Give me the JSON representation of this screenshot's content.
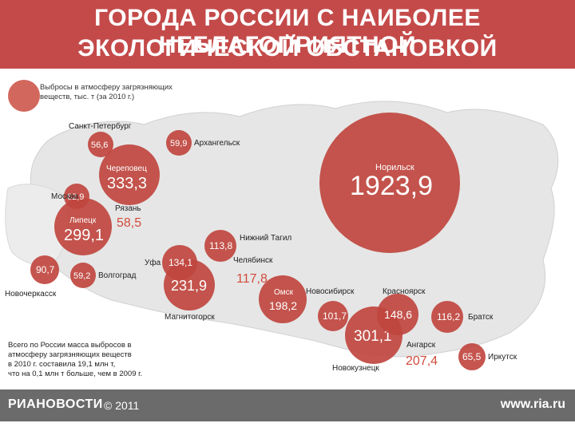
{
  "header": {
    "title_line1": "ГОРОДА РОССИИ С НАИБОЛЕЕ НЕБЛАГОПРИЯТНОЙ",
    "title_line2": "ЭКОЛОГИЧЕСКОЙ ОБСТАНОВКОЙ"
  },
  "legend": {
    "line1": "Выбросы в атмосферу загрязняющих",
    "line2": "веществ, тыс. т (за 2010 г.)"
  },
  "note": {
    "line1": "Всего по России масса выбросов в",
    "line2": "атмосферу загрязняющих веществ",
    "line3": "в 2010 г. составила 19,1 млн т,",
    "line4": "что на 0,1 млн т больше, чем в 2009 г."
  },
  "footer": {
    "brand": "РИАНОВОСТИ",
    "copyright": "© 2011",
    "site": "www.ria.ru"
  },
  "colors": {
    "header_bg": "#c44a4a",
    "circle": "#c0463f",
    "circle_light": "#d2685d",
    "map_land": "#e6e6e6",
    "red_text": "#d24b3c",
    "footer_bg": "#6b6b6b"
  },
  "cities": [
    {
      "id": "norilsk",
      "name": "Норильск",
      "value": "1923,9",
      "style": "inside"
    },
    {
      "id": "cherepovets",
      "name": "Череповец",
      "value": "333,3",
      "style": "inside"
    },
    {
      "id": "lipetsk",
      "name": "Липецк",
      "value": "299,1",
      "style": "inside"
    },
    {
      "id": "magnitogorsk",
      "name": "Магнитогорск",
      "value": "231,9",
      "style": "outside"
    },
    {
      "id": "novokuznetsk",
      "name": "Новокузнецк",
      "value": "301,1",
      "style": "outside"
    },
    {
      "id": "omsk",
      "name": "Омск",
      "value": "198,2",
      "style": "inside"
    },
    {
      "id": "krasnoyarsk",
      "name": "Красноярск",
      "value": "148,6",
      "style": "outside"
    },
    {
      "id": "ufa",
      "name": "Уфа",
      "value": "134,1",
      "style": "outside"
    },
    {
      "id": "bratsk",
      "name": "Братск",
      "value": "116,2",
      "style": "outside"
    },
    {
      "id": "nizhny-tagil",
      "name": "Нижний Тагил",
      "value": "113,8",
      "style": "outside"
    },
    {
      "id": "novosibirsk",
      "name": "Новосибирск",
      "value": "101,7",
      "style": "outside"
    },
    {
      "id": "novocherkassk",
      "name": "Новочеркасск",
      "value": "90,7",
      "style": "outside"
    },
    {
      "id": "irkutsk",
      "name": "Иркутск",
      "value": "65,5",
      "style": "outside"
    },
    {
      "id": "moskva",
      "name": "Москва",
      "value": "62,9",
      "style": "outside"
    },
    {
      "id": "arkhangelsk",
      "name": "Архангельск",
      "value": "59,9",
      "style": "outside"
    },
    {
      "id": "volgograd",
      "name": "Волгоград",
      "value": "59,2",
      "style": "outside"
    },
    {
      "id": "sankt-peterburg",
      "name": "Санкт-Петербург",
      "value": "56,6",
      "style": "outside"
    },
    {
      "id": "chelyabinsk",
      "name": "Челябинск",
      "value": "117,8",
      "style": "red"
    },
    {
      "id": "ryazan",
      "name": "Рязань",
      "value": "58,5",
      "style": "red"
    },
    {
      "id": "angarsk",
      "name": "Ангарск",
      "value": "207,4",
      "style": "red"
    }
  ]
}
